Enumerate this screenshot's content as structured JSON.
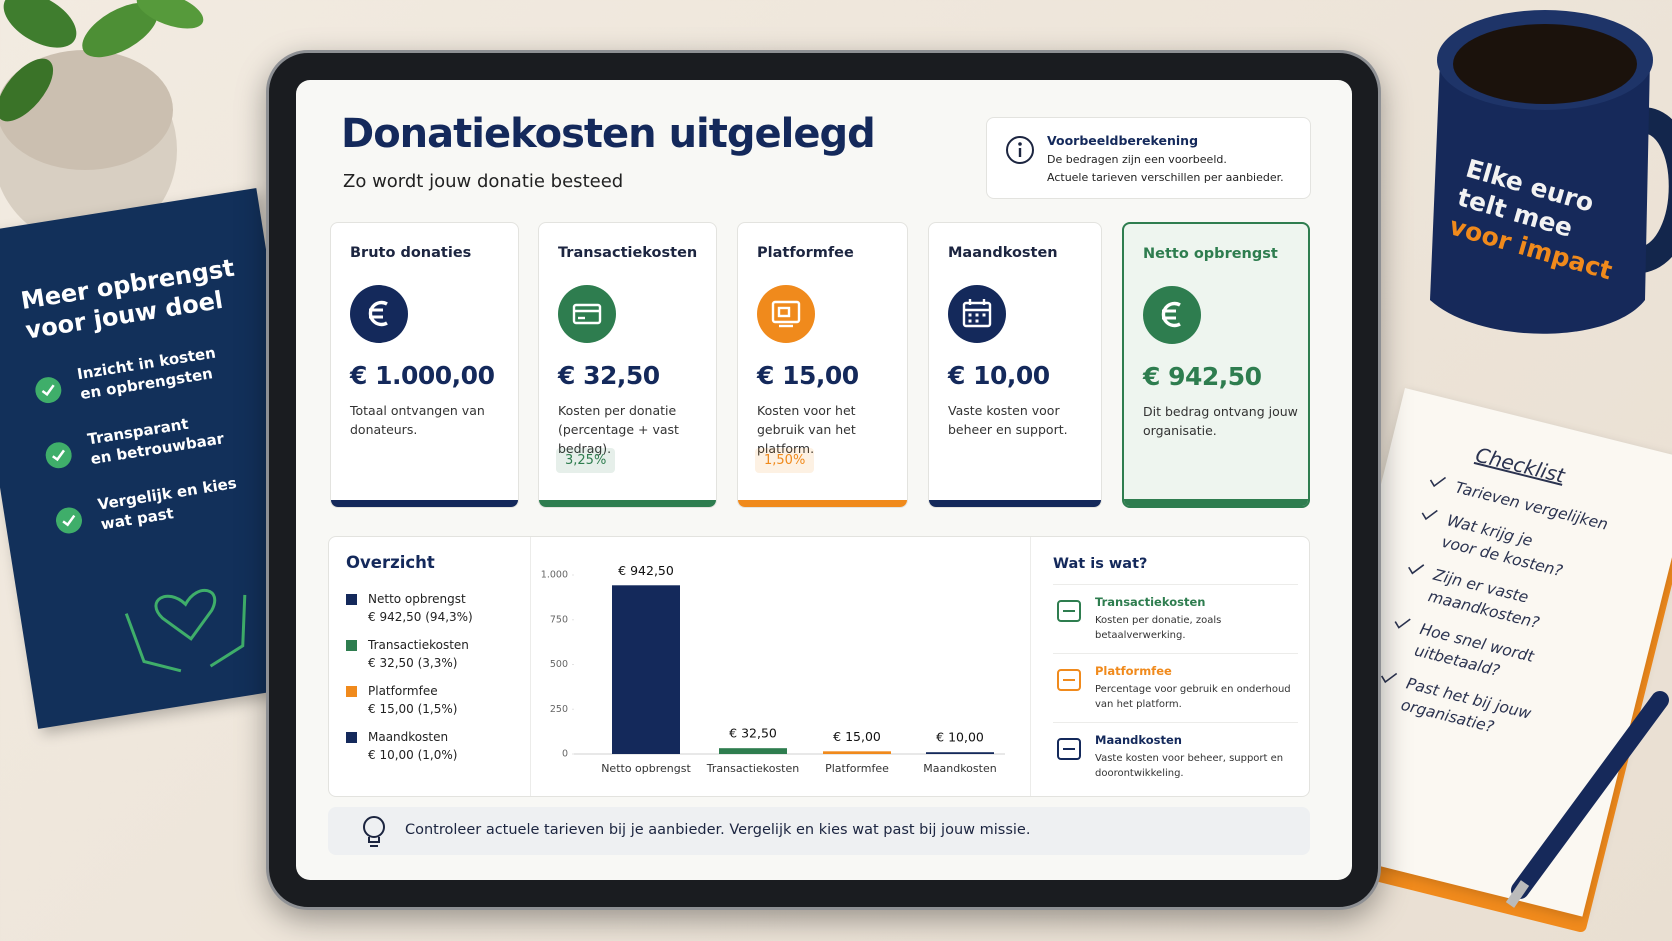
{
  "header": {
    "title": "Donatiekosten uitgelegd",
    "subtitle": "Zo wordt jouw donatie besteed"
  },
  "info": {
    "title": "Voorbeeldberekening",
    "lines": [
      "De bedragen zijn een voorbeeld.",
      "Actuele tarieven verschillen per aanbieder."
    ]
  },
  "cards": [
    {
      "title": "Bruto donaties",
      "amount": "€ 1.000,00",
      "description": "Totaal ontvangen van donateurs.",
      "color": "#14295b",
      "icon": "euro"
    },
    {
      "title": "Transactiekosten",
      "amount": "€ 32,50",
      "description": "Kosten per donatie (percentage + vast bedrag).",
      "badge": "3,25%",
      "color": "#2e7d4f",
      "icon": "card"
    },
    {
      "title": "Platformfee",
      "amount": "€ 15,00",
      "description": "Kosten voor het gebruik van het platform.",
      "badge": "1,50%",
      "color": "#f08a1c",
      "icon": "screen"
    },
    {
      "title": "Maandkosten",
      "amount": "€ 10,00",
      "description": "Vaste kosten voor beheer en support.",
      "color": "#14295b",
      "icon": "calendar"
    },
    {
      "title": "Netto opbrengst",
      "amount": "€ 942,50",
      "description": "Dit bedrag ontvang jouw organisatie.",
      "color": "#2e7d4f",
      "icon": "euro",
      "highlight": true
    }
  ],
  "overview": {
    "title": "Overzicht",
    "legend": [
      {
        "name": "Netto opbrengst",
        "value": "€ 942,50 (94,3%)",
        "color": "#14295b"
      },
      {
        "name": "Transactiekosten",
        "value": "€ 32,50 (3,3%)",
        "color": "#2e7d4f"
      },
      {
        "name": "Platformfee",
        "value": "€ 15,00 (1,5%)",
        "color": "#f08a1c"
      },
      {
        "name": "Maandkosten",
        "value": "€ 10,00 (1,0%)",
        "color": "#14295b"
      }
    ]
  },
  "chart_data": {
    "type": "bar",
    "categories": [
      "Netto opbrengst",
      "Transactiekosten",
      "Platformfee",
      "Maandkosten"
    ],
    "values": [
      942.5,
      32.5,
      15,
      10
    ],
    "value_labels": [
      "€ 942,50",
      "€ 32,50",
      "€ 15,00",
      "€ 10,00"
    ],
    "colors": [
      "#14295b",
      "#2e7d4f",
      "#f08a1c",
      "#14295b"
    ],
    "ylim": [
      0,
      1000
    ],
    "yticks": [
      0,
      250,
      500,
      750,
      {
        "value": 1000,
        "label": "1.000"
      }
    ]
  },
  "glossary": {
    "title": "Wat is wat?",
    "items": [
      {
        "title": "Transactiekosten",
        "text": "Kosten per donatie, zoals betaalverwerking.",
        "color": "#2e7d4f"
      },
      {
        "title": "Platformfee",
        "text": "Percentage voor gebruik en onderhoud van het platform.",
        "color": "#f08a1c"
      },
      {
        "title": "Maandkosten",
        "text": "Vaste kosten voor beheer, support en doorontwikkeling.",
        "color": "#14295b"
      }
    ]
  },
  "footer": {
    "text": "Controleer actuele tarieven bij je aanbieder. Vergelijk en kies wat past bij jouw missie."
  },
  "booklet": {
    "title": [
      "Meer opbrengst",
      "voor jouw doel"
    ],
    "items": [
      [
        "Inzicht in kosten",
        "en opbrengsten"
      ],
      [
        "Transparant",
        "en betrouwbaar"
      ],
      [
        "Vergelijk en kies",
        "wat past"
      ]
    ]
  },
  "mug": {
    "lines": [
      "Elke euro",
      "telt mee",
      "voor impact"
    ]
  },
  "checklist": {
    "title": "Checklist",
    "items": [
      [
        "Tarieven vergelijken"
      ],
      [
        "Wat krijg je",
        "voor de kosten?"
      ],
      [
        "Zijn er vaste",
        "maandkosten?"
      ],
      [
        "Hoe snel wordt",
        "uitbetaald?"
      ],
      [
        "Past het bij jouw",
        "organisatie?"
      ]
    ]
  }
}
